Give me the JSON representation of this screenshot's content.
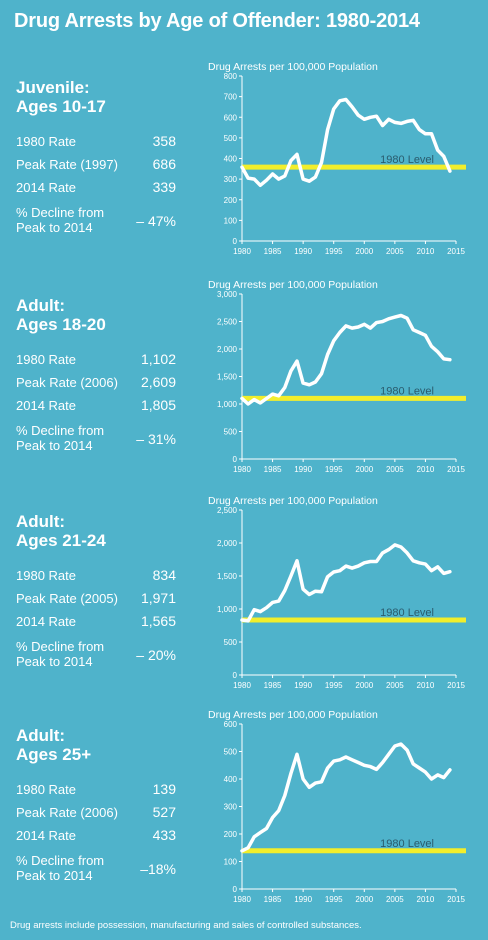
{
  "title": "Drug Arrests by Age of Offender: 1980-2014",
  "footer": "Drug arrests include possession, manufacturing and sales of controlled substances.",
  "colors": {
    "background": "#4fb3cb",
    "line": "#ffffff",
    "level": "#f2ee2b",
    "level_text": "#2a5c6e",
    "chart_bg": "#ffffff"
  },
  "panels": [
    {
      "heading": [
        "Juvenile:",
        "Ages 10-17"
      ],
      "stats": [
        {
          "label": "1980 Rate",
          "value": "358"
        },
        {
          "label": "Peak Rate (1997)",
          "value": "686"
        },
        {
          "label": "2014 Rate",
          "value": "339"
        },
        {
          "label": "% Decline from Peak to 2014",
          "label_lines": [
            "% Decline from",
            "Peak to 2014"
          ],
          "value": "– 47%"
        }
      ]
    },
    {
      "heading": [
        "Adult:",
        "Ages 18-20"
      ],
      "stats": [
        {
          "label": "1980 Rate",
          "value": "1,102"
        },
        {
          "label": "Peak Rate (2006)",
          "value": "2,609"
        },
        {
          "label": "2014 Rate",
          "value": "1,805"
        },
        {
          "label": "% Decline from Peak to 2014",
          "label_lines": [
            "% Decline from",
            "Peak to 2014"
          ],
          "value": "– 31%"
        }
      ]
    },
    {
      "heading": [
        "Adult:",
        "Ages 21-24"
      ],
      "stats": [
        {
          "label": "1980 Rate",
          "value": "834"
        },
        {
          "label": "Peak Rate (2005)",
          "value": "1,971"
        },
        {
          "label": "2014 Rate",
          "value": "1,565"
        },
        {
          "label": "% Decline from Peak to 2014",
          "label_lines": [
            "% Decline from",
            "Peak to 2014"
          ],
          "value": "– 20%"
        }
      ]
    },
    {
      "heading": [
        "Adult:",
        "Ages 25+"
      ],
      "stats": [
        {
          "label": "1980 Rate",
          "value": "139"
        },
        {
          "label": "Peak Rate (2006)",
          "value": "527"
        },
        {
          "label": "2014 Rate",
          "value": "433"
        },
        {
          "label": "% Decline from Peak to 2014",
          "label_lines": [
            "% Decline from",
            "Peak to 2014"
          ],
          "value": "–18%"
        }
      ]
    }
  ],
  "chart_data": [
    {
      "type": "line",
      "ylabel": "Drug Arrests per 100,000 Population",
      "xlim": [
        1980,
        2015
      ],
      "xticks": [
        "1980",
        "1985",
        "1990",
        "1995",
        "2000",
        "2005",
        "2010",
        "2015"
      ],
      "ylim": [
        0,
        800
      ],
      "yticks": [
        "0",
        "100",
        "200",
        "300",
        "400",
        "500",
        "600",
        "700",
        "800"
      ],
      "reference_line": {
        "label": "1980 Level",
        "value": 358
      },
      "x": [
        1980,
        1981,
        1982,
        1983,
        1984,
        1985,
        1986,
        1987,
        1988,
        1989,
        1990,
        1991,
        1992,
        1993,
        1994,
        1995,
        1996,
        1997,
        1998,
        1999,
        2000,
        2001,
        2002,
        2003,
        2004,
        2005,
        2006,
        2007,
        2008,
        2009,
        2010,
        2011,
        2012,
        2013,
        2014
      ],
      "values": [
        358,
        305,
        300,
        270,
        295,
        325,
        300,
        315,
        390,
        420,
        300,
        290,
        310,
        380,
        540,
        640,
        680,
        686,
        650,
        610,
        590,
        600,
        605,
        560,
        590,
        575,
        570,
        580,
        585,
        540,
        520,
        520,
        440,
        410,
        339
      ]
    },
    {
      "type": "line",
      "ylabel": "Drug Arrests per 100,000 Population",
      "xlim": [
        1980,
        2015
      ],
      "xticks": [
        "1980",
        "1985",
        "1990",
        "1995",
        "2000",
        "2005",
        "2010",
        "2015"
      ],
      "ylim": [
        0,
        3000
      ],
      "yticks": [
        "0",
        "500",
        "1,000",
        "1,500",
        "2,000",
        "2,500",
        "3,000"
      ],
      "reference_line": {
        "label": "1980 Level",
        "value": 1102
      },
      "x": [
        1980,
        1981,
        1982,
        1983,
        1984,
        1985,
        1986,
        1987,
        1988,
        1989,
        1990,
        1991,
        1992,
        1993,
        1994,
        1995,
        1996,
        1997,
        1998,
        1999,
        2000,
        2001,
        2002,
        2003,
        2004,
        2005,
        2006,
        2007,
        2008,
        2009,
        2010,
        2011,
        2012,
        2013,
        2014
      ],
      "values": [
        1102,
        1000,
        1080,
        1020,
        1100,
        1180,
        1150,
        1300,
        1600,
        1780,
        1380,
        1350,
        1400,
        1550,
        1900,
        2150,
        2300,
        2420,
        2380,
        2400,
        2450,
        2380,
        2480,
        2500,
        2550,
        2580,
        2609,
        2560,
        2350,
        2300,
        2250,
        2050,
        1950,
        1820,
        1805
      ]
    },
    {
      "type": "line",
      "ylabel": "Drug Arrests per 100,000 Population",
      "xlim": [
        1980,
        2015
      ],
      "xticks": [
        "1980",
        "1985",
        "1990",
        "1995",
        "2000",
        "2005",
        "2010",
        "2015"
      ],
      "ylim": [
        0,
        2500
      ],
      "yticks": [
        "0",
        "500",
        "1,000",
        "1,500",
        "2,000",
        "2,500"
      ],
      "reference_line": {
        "label": "1980 Level",
        "value": 834
      },
      "x": [
        1980,
        1981,
        1982,
        1983,
        1984,
        1985,
        1986,
        1987,
        1988,
        1989,
        1990,
        1991,
        1992,
        1993,
        1994,
        1995,
        1996,
        1997,
        1998,
        1999,
        2000,
        2001,
        2002,
        2003,
        2004,
        2005,
        2006,
        2007,
        2008,
        2009,
        2010,
        2011,
        2012,
        2013,
        2014
      ],
      "values": [
        834,
        820,
        990,
        960,
        1020,
        1100,
        1120,
        1280,
        1500,
        1730,
        1300,
        1220,
        1270,
        1260,
        1490,
        1560,
        1580,
        1650,
        1620,
        1650,
        1700,
        1720,
        1720,
        1850,
        1900,
        1971,
        1940,
        1850,
        1730,
        1700,
        1680,
        1580,
        1640,
        1540,
        1565
      ]
    },
    {
      "type": "line",
      "ylabel": "Drug Arrests per 100,000 Population",
      "xlim": [
        1980,
        2015
      ],
      "xticks": [
        "1980",
        "1985",
        "1990",
        "1995",
        "2000",
        "2005",
        "2010",
        "2015"
      ],
      "ylim": [
        0,
        600
      ],
      "yticks": [
        "0",
        "100",
        "200",
        "300",
        "400",
        "500",
        "600"
      ],
      "reference_line": {
        "label": "1980 Level",
        "value": 139
      },
      "x": [
        1980,
        1981,
        1982,
        1983,
        1984,
        1985,
        1986,
        1987,
        1988,
        1989,
        1990,
        1991,
        1992,
        1993,
        1994,
        1995,
        1996,
        1997,
        1998,
        1999,
        2000,
        2001,
        2002,
        2003,
        2004,
        2005,
        2006,
        2007,
        2008,
        2009,
        2010,
        2011,
        2012,
        2013,
        2014
      ],
      "values": [
        139,
        150,
        190,
        205,
        220,
        260,
        285,
        340,
        420,
        490,
        400,
        370,
        385,
        390,
        440,
        465,
        470,
        480,
        470,
        460,
        450,
        445,
        435,
        460,
        490,
        520,
        527,
        505,
        455,
        440,
        425,
        400,
        415,
        405,
        433
      ]
    }
  ]
}
